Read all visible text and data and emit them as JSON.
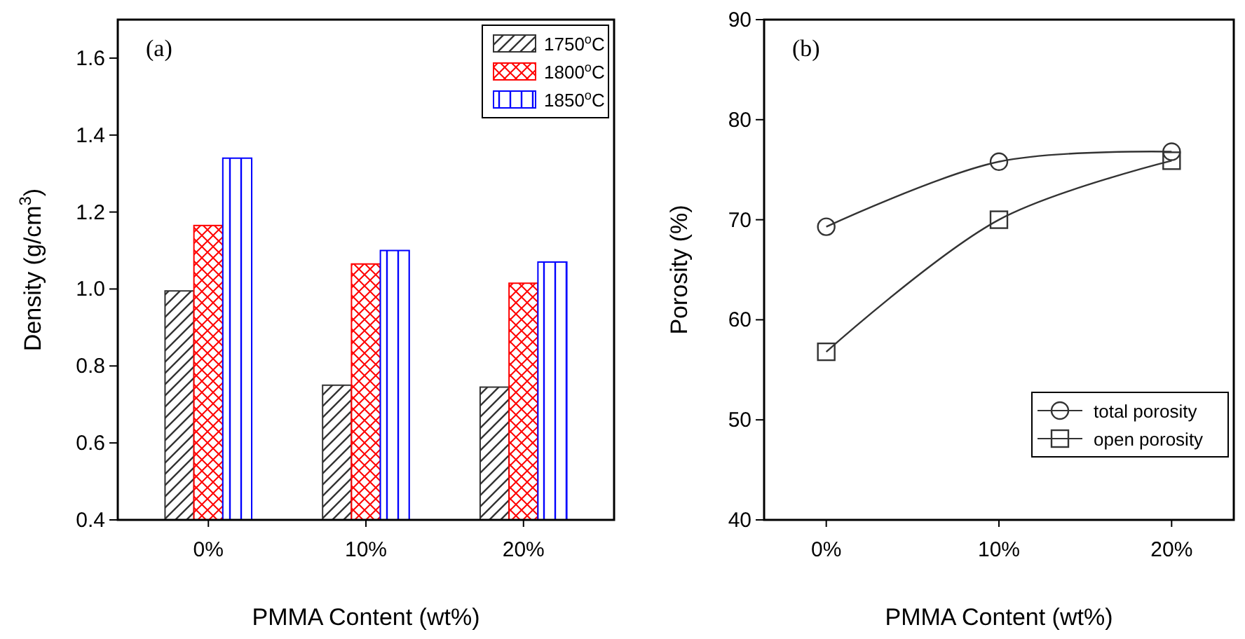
{
  "chart_data": [
    {
      "type": "bar",
      "xlabel": "PMMA Content (wt%)",
      "ylabel": "Density (g/cm$^{3}$)",
      "categories": [
        "0%",
        "10%",
        "20%"
      ],
      "series": [
        {
          "name": "1750$^{o}$C",
          "color": "#333333",
          "values": [
            0.995,
            0.75,
            0.745
          ]
        },
        {
          "name": "1800$^{o}$C",
          "color": "#ff0000",
          "values": [
            1.165,
            1.065,
            1.015
          ]
        },
        {
          "name": "1850$^{o}$C",
          "color": "#0000ff",
          "values": [
            1.34,
            1.1,
            1.07
          ]
        }
      ],
      "ylim": [
        0.4,
        1.7
      ],
      "yticks": [
        {
          "value": 0.4,
          "label": "0.4"
        },
        {
          "value": 0.6,
          "label": "0.6"
        },
        {
          "value": 0.8,
          "label": "0.8"
        },
        {
          "value": 1,
          "label": "1.0"
        },
        {
          "value": 1.2,
          "label": "1.2"
        },
        {
          "value": 1.4,
          "label": "1.4"
        },
        {
          "value": 1.6,
          "label": "1.6"
        }
      ],
      "legend": "top right",
      "annotations": [
        "(a)"
      ]
    },
    {
      "type": "line",
      "xlabel": "PMMA Content (wt%)",
      "ylabel": "Porosity (%)",
      "categories": [
        "0%",
        "10%",
        "20%"
      ],
      "series": [
        {
          "name": "total porosity",
          "color": "#333333",
          "marker": "circle",
          "values": [
            69.3,
            75.8,
            76.8
          ]
        },
        {
          "name": "open porosity",
          "color": "#333333",
          "marker": "square",
          "values": [
            56.8,
            70,
            75.9
          ]
        }
      ],
      "ylim": [
        40,
        90
      ],
      "yticks": [
        40,
        50,
        60,
        70,
        80,
        90
      ],
      "legend": "bottom right",
      "annotations": [
        "(b)"
      ]
    }
  ]
}
